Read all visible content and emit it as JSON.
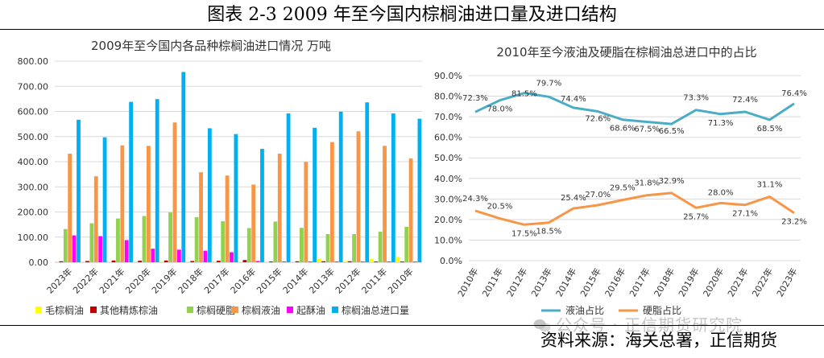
{
  "figure_title": "图表 2-3 2009 年至今国内棕榈油进口量及进口结构",
  "source": "资料来源：海关总署，正信期货",
  "watermark": "公众号 · 正信期货研究院",
  "colors": {
    "mao": "#ffff00",
    "other": "#c00000",
    "stearin": "#92d050",
    "olein": "#f79646",
    "shortening": "#ff00ff",
    "total": "#00b0f0",
    "liquid_line": "#4bacc6",
    "stearin_line": "#f79646"
  },
  "chart_data": [
    {
      "type": "bar",
      "title": "2009年至今国内各品种棕榈油进口情况 万吨",
      "categories": [
        "2023年",
        "2022年",
        "2021年",
        "2020年",
        "2019年",
        "2018年",
        "2017年",
        "2016年",
        "2015年",
        "2014年",
        "2013年",
        "2012年",
        "2011年",
        "2010年"
      ],
      "ylim": [
        0,
        800
      ],
      "yticks": [
        "0.00",
        "100.00",
        "200.00",
        "300.00",
        "400.00",
        "500.00",
        "600.00",
        "700.00",
        "800.00"
      ],
      "series": [
        {
          "name": "毛棕榈油",
          "color": "#ffff00",
          "values": [
            3,
            3,
            3,
            3,
            4,
            3,
            4,
            2,
            2,
            3,
            14,
            5,
            14,
            22
          ]
        },
        {
          "name": "其他精炼棕油",
          "color": "#c00000",
          "values": [
            4,
            5,
            7,
            6,
            7,
            5,
            6,
            9,
            3,
            4,
            4,
            4,
            3,
            3
          ]
        },
        {
          "name": "棕榈硬脂",
          "color": "#92d050",
          "values": [
            132,
            155,
            174,
            184,
            198,
            179,
            163,
            136,
            162,
            137,
            112,
            112,
            122,
            141
          ]
        },
        {
          "name": "棕榈液油",
          "color": "#f79646",
          "values": [
            432,
            342,
            465,
            463,
            556,
            358,
            345,
            309,
            432,
            399,
            478,
            521,
            463,
            413
          ]
        },
        {
          "name": "起酥油",
          "color": "#ff00ff",
          "values": [
            107,
            104,
            88,
            54,
            50,
            46,
            40,
            5,
            3,
            3,
            3,
            3,
            3,
            3
          ]
        },
        {
          "name": "棕榈油总进口量",
          "color": "#00b0f0",
          "values": [
            567,
            497,
            638,
            649,
            757,
            533,
            510,
            451,
            592,
            535,
            599,
            636,
            592,
            571
          ]
        }
      ],
      "legend": [
        "毛棕榈油",
        "其他精炼棕油",
        "棕榈硬脂",
        "棕榈液油",
        "起酥油",
        "棕榈油总进口量"
      ]
    },
    {
      "type": "line",
      "title": "2010年至今液油及硬脂在棕榈油总进口中的占比",
      "categories": [
        "2010年",
        "2011年",
        "2012年",
        "2013年",
        "2014年",
        "2015年",
        "2016年",
        "2017年",
        "2018年",
        "2019年",
        "2020年",
        "2021年",
        "2022年",
        "2023年"
      ],
      "ylim": [
        0,
        90
      ],
      "yticks": [
        "0.0%",
        "10.0%",
        "20.0%",
        "30.0%",
        "40.0%",
        "50.0%",
        "60.0%",
        "70.0%",
        "80.0%",
        "90.0%"
      ],
      "series": [
        {
          "name": "液油占比",
          "color": "#4bacc6",
          "values": [
            72.3,
            78.0,
            81.5,
            79.7,
            74.4,
            72.6,
            68.6,
            67.5,
            66.5,
            73.3,
            71.3,
            72.4,
            68.5,
            76.4
          ],
          "labels": [
            "72.3%",
            "78.0%",
            "81.5%",
            "79.7%",
            "74.4%",
            "72.6%",
            "68.6%",
            "67.5%",
            "66.5%",
            "73.3%",
            "71.3%",
            "72.4%",
            "68.5%",
            "76.4%"
          ]
        },
        {
          "name": "硬脂占比",
          "color": "#f79646",
          "values": [
            24.3,
            20.5,
            17.5,
            18.5,
            25.4,
            27.0,
            29.5,
            31.8,
            32.9,
            25.7,
            28.0,
            27.1,
            31.1,
            23.2
          ],
          "labels": [
            "24.3%",
            "20.5%",
            "17.5%",
            "18.5%",
            "25.4%",
            "27.0%",
            "29.5%",
            "31.8%",
            "32.9%",
            "25.7%",
            "28.0%",
            "27.1%",
            "31.1%",
            "23.2%"
          ]
        }
      ],
      "legend": [
        "液油占比",
        "硬脂占比"
      ]
    }
  ]
}
